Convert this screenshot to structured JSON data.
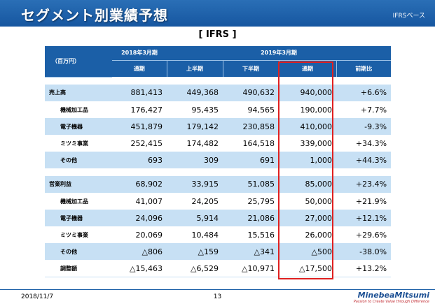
{
  "header": {
    "title": "セグメント別業績予想",
    "basis": "IFRSベース"
  },
  "subtitle": "[ IFRS ]",
  "table": {
    "unit_label": "（百万円）",
    "fy2018": "2018年3月期",
    "fy2019": "2019年3月期",
    "col_full_year": "通期",
    "col_h1": "上半期",
    "col_h2": "下半期",
    "col_full_year_2": "通期",
    "col_yoy": "前期比",
    "sales": [
      {
        "label": "売上高",
        "fy18": "881,413",
        "h1": "449,368",
        "h2": "490,632",
        "fy19": "940,000",
        "yoy": "+6.6%"
      },
      {
        "label": "機械加工品",
        "fy18": "176,427",
        "h1": "95,435",
        "h2": "94,565",
        "fy19": "190,000",
        "yoy": "+7.7%"
      },
      {
        "label": "電子機器",
        "fy18": "451,879",
        "h1": "179,142",
        "h2": "230,858",
        "fy19": "410,000",
        "yoy": "-9.3%"
      },
      {
        "label": "ミツミ事業",
        "fy18": "252,415",
        "h1": "174,482",
        "h2": "164,518",
        "fy19": "339,000",
        "yoy": "+34.3%"
      },
      {
        "label": "その他",
        "fy18": "693",
        "h1": "309",
        "h2": "691",
        "fy19": "1,000",
        "yoy": "+44.3%"
      }
    ],
    "profit": [
      {
        "label": "営業利益",
        "fy18": "68,902",
        "h1": "33,915",
        "h2": "51,085",
        "fy19": "85,000",
        "yoy": "+23.4%"
      },
      {
        "label": "機械加工品",
        "fy18": "41,007",
        "h1": "24,205",
        "h2": "25,795",
        "fy19": "50,000",
        "yoy": "+21.9%"
      },
      {
        "label": "電子機器",
        "fy18": "24,096",
        "h1": "5,914",
        "h2": "21,086",
        "fy19": "27,000",
        "yoy": "+12.1%"
      },
      {
        "label": "ミツミ事業",
        "fy18": "20,069",
        "h1": "10,484",
        "h2": "15,516",
        "fy19": "26,000",
        "yoy": "+29.6%"
      },
      {
        "label": "その他",
        "fy18": "△806",
        "h1": "△159",
        "h2": "△341",
        "fy19": "△500",
        "yoy": "-38.0%"
      },
      {
        "label": "調整額",
        "fy18": "△15,463",
        "h1": "△6,529",
        "h2": "△10,971",
        "fy19": "△17,500",
        "yoy": "+13.2%"
      }
    ]
  },
  "footer": {
    "date": "2018/11/7",
    "page": "13",
    "logo_name": "MinebeaMitsumi",
    "logo_tagline": "Passion to Create Value through Difference"
  },
  "colors": {
    "header_blue": "#1b5fa7",
    "row_light": "#c7e0f4",
    "highlight_red": "#e02020"
  }
}
